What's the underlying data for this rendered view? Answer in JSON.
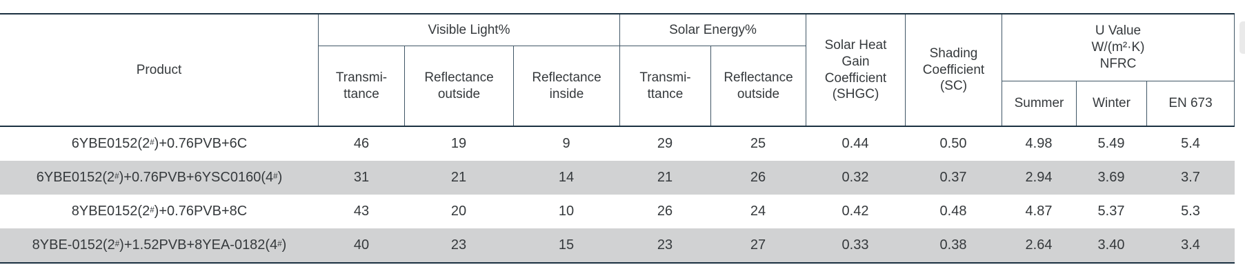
{
  "colors": {
    "line_heavy": "#1a3040",
    "line_light": "#3f5565",
    "row_shade": "#d1d2d3",
    "text": "#35393c"
  },
  "table": {
    "header": {
      "product": "Product",
      "visible_light_group": "Visible Light%",
      "solar_energy_group": "Solar Energy%",
      "shgc": "Solar Heat\nGain\nCoefficient\n(SHGC)",
      "sc": "Shading\nCoefficient\n(SC)",
      "u_value_group": "U Value\nW/(m²·K)\nNFRC",
      "vl_transmittance": "Transmi-\nttance",
      "vl_reflectance_outside": "Reflectance\noutside",
      "vl_reflectance_inside": "Reflectance\ninside",
      "se_transmittance": "Transmi-\nttance",
      "se_reflectance_outside": "Reflectance\noutside",
      "summer": "Summer",
      "winter": "Winter",
      "en673": "EN 673"
    },
    "rows": [
      {
        "shaded": false,
        "product_parts": [
          {
            "text": "6YBE0152(2"
          },
          {
            "text": "#",
            "sup": true
          },
          {
            "text": ")+0.76PVB+6C"
          }
        ],
        "values": [
          "46",
          "19",
          "9",
          "29",
          "25",
          "0.44",
          "0.50",
          "4.98",
          "5.49",
          "5.4"
        ]
      },
      {
        "shaded": true,
        "product_parts": [
          {
            "text": "6YBE0152(2"
          },
          {
            "text": "#",
            "sup": true
          },
          {
            "text": ")+0.76PVB+6YSC0160(4"
          },
          {
            "text": "#",
            "sup": true
          },
          {
            "text": ")"
          }
        ],
        "values": [
          "31",
          "21",
          "14",
          "21",
          "26",
          "0.32",
          "0.37",
          "2.94",
          "3.69",
          "3.7"
        ]
      },
      {
        "shaded": false,
        "product_parts": [
          {
            "text": "8YBE0152(2"
          },
          {
            "text": "#",
            "sup": true
          },
          {
            "text": ")+0.76PVB+8C"
          }
        ],
        "values": [
          "43",
          "20",
          "10",
          "26",
          "24",
          "0.42",
          "0.48",
          "4.87",
          "5.37",
          "5.3"
        ]
      },
      {
        "shaded": true,
        "product_parts": [
          {
            "text": "8YBE-0152(2"
          },
          {
            "text": "#",
            "sup": true
          },
          {
            "text": ")+1.52PVB+8YEA-0182(4"
          },
          {
            "text": "#",
            "sup": true
          },
          {
            "text": ")"
          }
        ],
        "values": [
          "40",
          "23",
          "15",
          "23",
          "27",
          "0.33",
          "0.38",
          "2.64",
          "3.40",
          "3.4"
        ]
      }
    ]
  }
}
